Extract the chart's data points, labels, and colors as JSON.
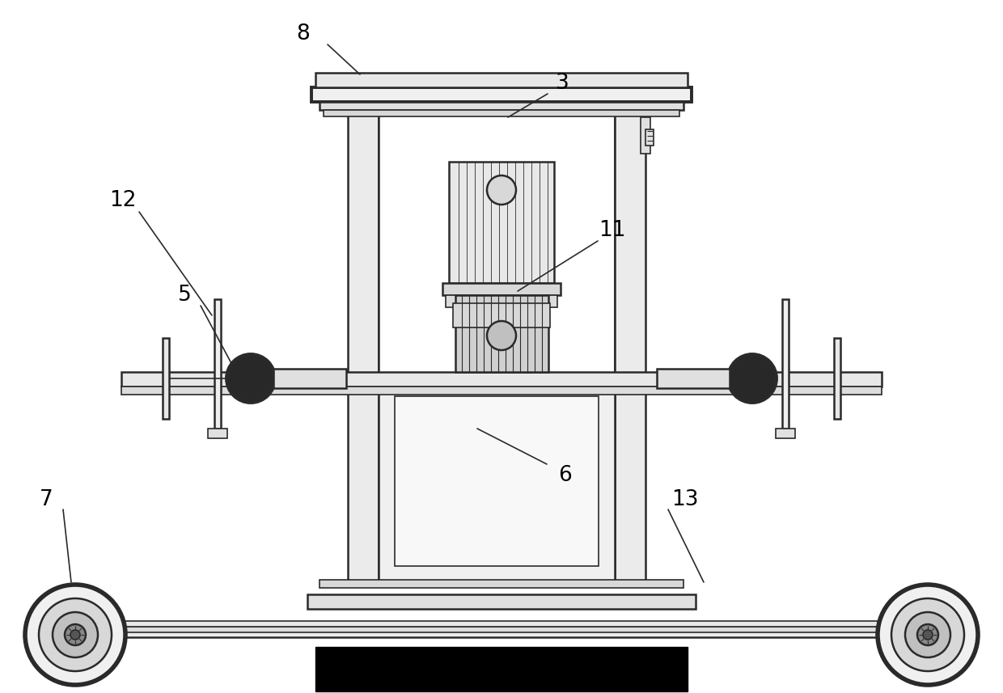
{
  "bg_color": "#ffffff",
  "lc": "#2a2a2a",
  "lc_dark": "#000000",
  "fw_light": "#f5f5f5",
  "fw_med": "#e0e0e0",
  "fw_dark": "#c0c0c0",
  "fw_black": "#000000",
  "fw_darkgray": "#333333"
}
